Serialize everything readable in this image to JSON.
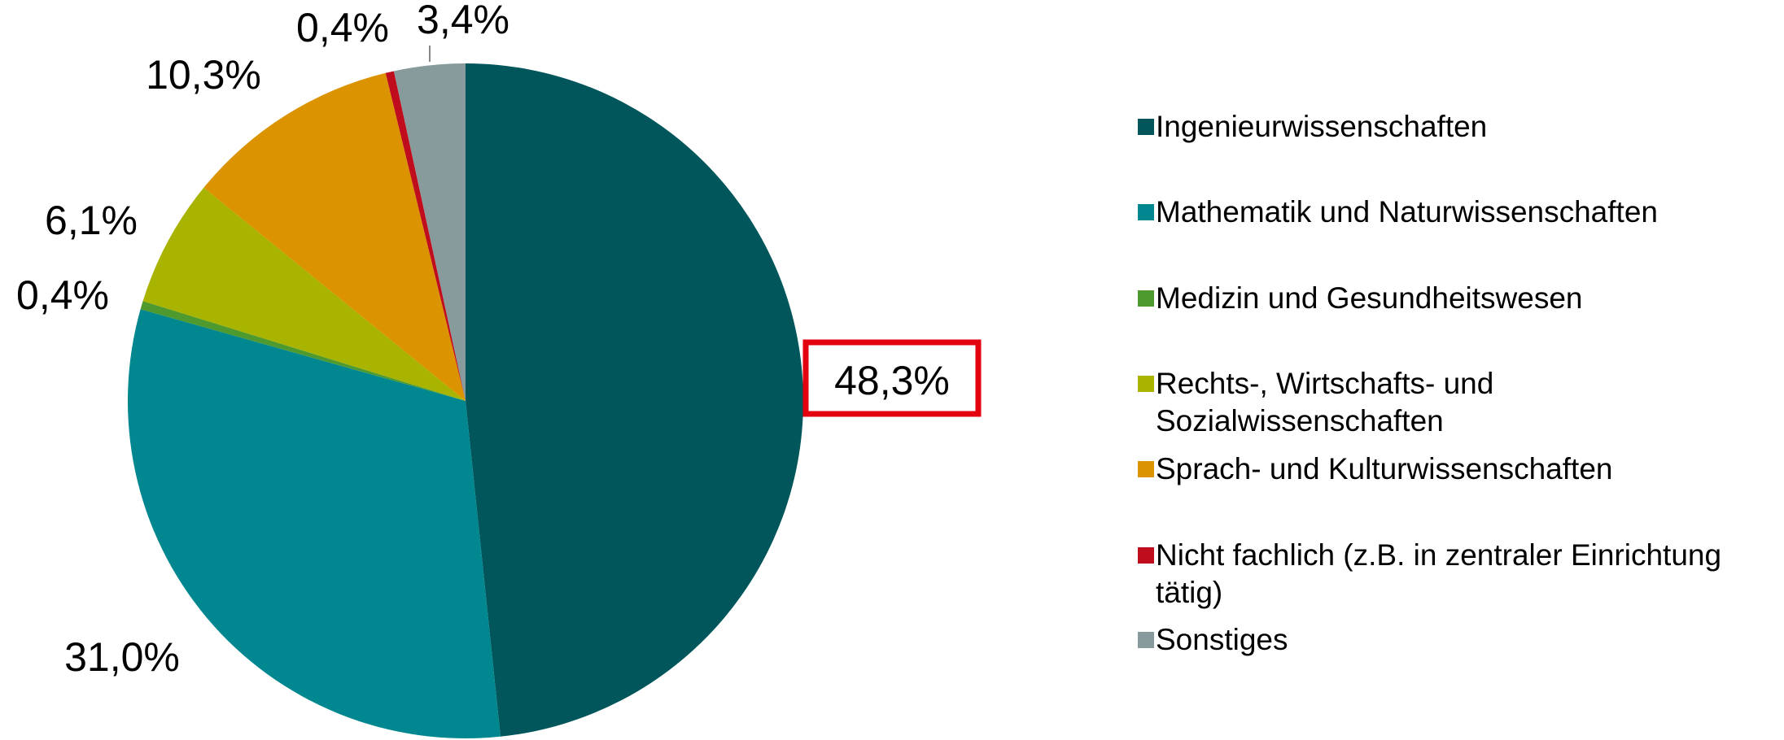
{
  "chart_data": {
    "type": "pie",
    "categories": [
      "Ingenieurwissenschaften",
      "Mathematik und Naturwissenschaften",
      "Medizin und Gesundheitswesen",
      "Rechts-, Wirtschafts- und Sozialwissenschaften",
      "Sprach- und Kulturwissenschaften",
      "Nicht fachlich (z.B. in zentraler Einrichtung tätig)",
      "Sonstiges"
    ],
    "values": [
      48.3,
      31.0,
      0.4,
      6.1,
      10.3,
      0.4,
      3.4
    ],
    "value_labels": [
      "48,3%",
      "31,0%",
      "0,4%",
      "6,1%",
      "10,3%",
      "0,4%",
      "3,4%"
    ],
    "colors": [
      "#00565a",
      "#00878f",
      "#4e9a2e",
      "#a8b400",
      "#dc9300",
      "#c00d1e",
      "#879b9c"
    ],
    "legend": "right"
  }
}
